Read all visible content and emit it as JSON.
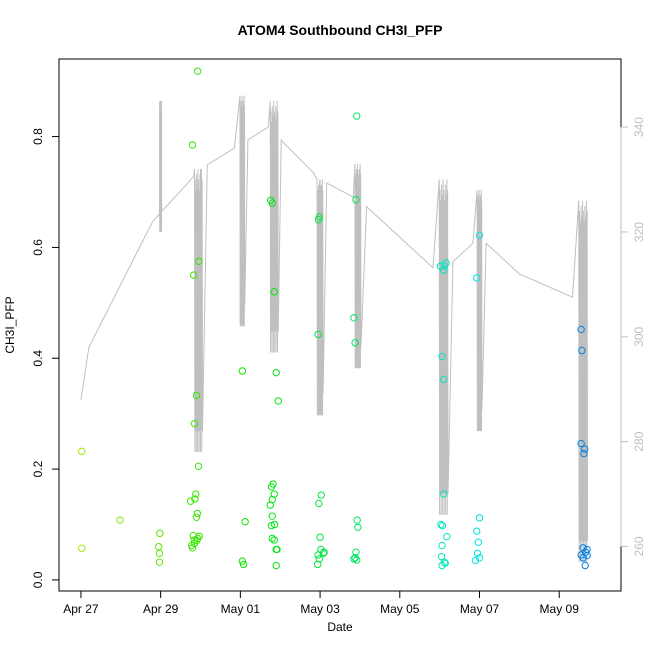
{
  "chart_data": {
    "type": "scatter",
    "title": "ATOM4 Southbound CH3I_PFP",
    "xlabel": "Date",
    "ylabel": "CH3I_PFP",
    "x_unit": "days since Apr 27",
    "xlim": [
      -0.55,
      13.55
    ],
    "ylim": [
      -0.02,
      0.94
    ],
    "y2lim": [
      251.5,
      353
    ],
    "x_ticks": [
      {
        "value": 0,
        "label": "Apr 27"
      },
      {
        "value": 2,
        "label": "Apr 29"
      },
      {
        "value": 4,
        "label": "May 01"
      },
      {
        "value": 6,
        "label": "May 03"
      },
      {
        "value": 8,
        "label": "May 05"
      },
      {
        "value": 10,
        "label": "May 07"
      },
      {
        "value": 12,
        "label": "May 09"
      }
    ],
    "y_ticks": [
      {
        "value": 0.0,
        "label": "0.0"
      },
      {
        "value": 0.2,
        "label": "0.2"
      },
      {
        "value": 0.4,
        "label": "0.4"
      },
      {
        "value": 0.6,
        "label": "0.6"
      },
      {
        "value": 0.8,
        "label": "0.8"
      }
    ],
    "y2_ticks": [
      {
        "value": 260,
        "label": "260"
      },
      {
        "value": 280,
        "label": "280"
      },
      {
        "value": 300,
        "label": "300"
      },
      {
        "value": 320,
        "label": "320"
      },
      {
        "value": 340,
        "label": "340"
      }
    ],
    "grid": false,
    "series": [
      {
        "marker": "open-circle",
        "color_scale": "hue by time (yellow-green to blue)",
        "points": [
          [
            0.02,
            0.232
          ],
          [
            0.02,
            0.057
          ],
          [
            0.98,
            0.108
          ],
          [
            1.98,
            0.084
          ],
          [
            1.95,
            0.06
          ],
          [
            1.97,
            0.048
          ],
          [
            1.97,
            0.032
          ],
          [
            2.8,
            0.785
          ],
          [
            2.83,
            0.55
          ],
          [
            2.85,
            0.282
          ],
          [
            2.75,
            0.142
          ],
          [
            2.82,
            0.08
          ],
          [
            2.84,
            0.072
          ],
          [
            2.78,
            0.062
          ],
          [
            2.8,
            0.058
          ],
          [
            2.85,
            0.066
          ],
          [
            2.93,
            0.918
          ],
          [
            2.96,
            0.575
          ],
          [
            2.9,
            0.333
          ],
          [
            2.95,
            0.205
          ],
          [
            2.88,
            0.155
          ],
          [
            2.86,
            0.146
          ],
          [
            2.92,
            0.12
          ],
          [
            2.9,
            0.113
          ],
          [
            2.93,
            0.075
          ],
          [
            2.97,
            0.079
          ],
          [
            2.91,
            0.071
          ],
          [
            4.05,
            0.377
          ],
          [
            4.12,
            0.105
          ],
          [
            4.05,
            0.034
          ],
          [
            4.08,
            0.028
          ],
          [
            4.76,
            0.685
          ],
          [
            4.8,
            0.68
          ],
          [
            4.85,
            0.52
          ],
          [
            4.9,
            0.374
          ],
          [
            4.95,
            0.323
          ],
          [
            4.78,
            0.168
          ],
          [
            4.82,
            0.173
          ],
          [
            4.8,
            0.145
          ],
          [
            4.85,
            0.155
          ],
          [
            4.75,
            0.135
          ],
          [
            4.8,
            0.115
          ],
          [
            4.78,
            0.098
          ],
          [
            4.86,
            0.1
          ],
          [
            4.8,
            0.075
          ],
          [
            4.85,
            0.072
          ],
          [
            4.9,
            0.055
          ],
          [
            4.92,
            0.055
          ],
          [
            4.9,
            0.026
          ],
          [
            5.98,
            0.655
          ],
          [
            5.96,
            0.65
          ],
          [
            5.95,
            0.443
          ],
          [
            6.03,
            0.153
          ],
          [
            5.97,
            0.138
          ],
          [
            6.0,
            0.077
          ],
          [
            6.02,
            0.055
          ],
          [
            6.08,
            0.048
          ],
          [
            5.95,
            0.045
          ],
          [
            6.1,
            0.05
          ],
          [
            5.94,
            0.028
          ],
          [
            5.98,
            0.038
          ],
          [
            6.92,
            0.837
          ],
          [
            6.9,
            0.686
          ],
          [
            6.85,
            0.473
          ],
          [
            6.88,
            0.428
          ],
          [
            6.93,
            0.108
          ],
          [
            6.95,
            0.095
          ],
          [
            6.9,
            0.05
          ],
          [
            6.88,
            0.04
          ],
          [
            6.85,
            0.038
          ],
          [
            6.92,
            0.036
          ],
          [
            10.0,
            0.622
          ],
          [
            9.93,
            0.545
          ],
          [
            9.93,
            0.088
          ],
          [
            10.0,
            0.112
          ],
          [
            9.97,
            0.068
          ],
          [
            9.95,
            0.048
          ],
          [
            9.9,
            0.035
          ],
          [
            10.0,
            0.04
          ],
          [
            9.02,
            0.566
          ],
          [
            9.12,
            0.567
          ],
          [
            9.16,
            0.572
          ],
          [
            9.1,
            0.559
          ],
          [
            9.06,
            0.403
          ],
          [
            9.1,
            0.362
          ],
          [
            9.1,
            0.155
          ],
          [
            9.03,
            0.1
          ],
          [
            9.07,
            0.098
          ],
          [
            9.06,
            0.062
          ],
          [
            9.05,
            0.042
          ],
          [
            9.18,
            0.078
          ],
          [
            9.12,
            0.032
          ],
          [
            9.14,
            0.03
          ],
          [
            9.06,
            0.026
          ],
          [
            12.55,
            0.452
          ],
          [
            12.57,
            0.414
          ],
          [
            12.55,
            0.246
          ],
          [
            12.64,
            0.236
          ],
          [
            12.62,
            0.228
          ],
          [
            12.6,
            0.058
          ],
          [
            12.7,
            0.055
          ],
          [
            12.7,
            0.044
          ],
          [
            12.55,
            0.045
          ],
          [
            12.66,
            0.05
          ],
          [
            12.6,
            0.04
          ],
          [
            12.65,
            0.026
          ]
        ]
      },
      {
        "name": "",
        "type": "line",
        "axis": "right",
        "color": "#bfbfbf",
        "samples_per_day": 6,
        "burst_points": 24,
        "segments": [
          {
            "t0": 0.0,
            "t1": 0.2,
            "v0": 288,
            "v1": 298
          },
          {
            "t0": 0.2,
            "t1": 1.8,
            "v0": 298,
            "v1": 322
          },
          {
            "t0": 1.8,
            "t1": 3.0,
            "v0": 322,
            "v1": 332
          },
          {
            "t0": 3.0,
            "t1": 4.7,
            "v0": 332,
            "v1": 340
          },
          {
            "t0": 4.7,
            "t1": 6.0,
            "v0": 340,
            "v1": 330
          },
          {
            "t0": 6.0,
            "t1": 7.0,
            "v0": 330,
            "v1": 326
          },
          {
            "t0": 7.0,
            "t1": 9.0,
            "v0": 326,
            "v1": 312
          },
          {
            "t0": 9.0,
            "t1": 10.0,
            "v0": 312,
            "v1": 319
          },
          {
            "t0": 10.0,
            "t1": 11.0,
            "v0": 319,
            "v1": 312
          },
          {
            "t0": 11.0,
            "t1": 12.5,
            "v0": 312,
            "v1": 307
          }
        ],
        "bursts": [
          {
            "center": 2.0,
            "width": 0.05,
            "low": 318,
            "high": 345
          },
          {
            "center": 2.95,
            "width": 0.2,
            "low": 276,
            "high": 332
          },
          {
            "center": 4.05,
            "width": 0.12,
            "low": 300,
            "high": 346
          },
          {
            "center": 4.85,
            "width": 0.2,
            "low": 295,
            "high": 345
          },
          {
            "center": 6.0,
            "width": 0.15,
            "low": 283,
            "high": 330
          },
          {
            "center": 6.95,
            "width": 0.15,
            "low": 292,
            "high": 333
          },
          {
            "center": 9.1,
            "width": 0.22,
            "low": 264,
            "high": 330
          },
          {
            "center": 10.0,
            "width": 0.12,
            "low": 280,
            "high": 328
          },
          {
            "center": 12.6,
            "width": 0.22,
            "low": 255,
            "high": 326
          }
        ]
      }
    ]
  }
}
